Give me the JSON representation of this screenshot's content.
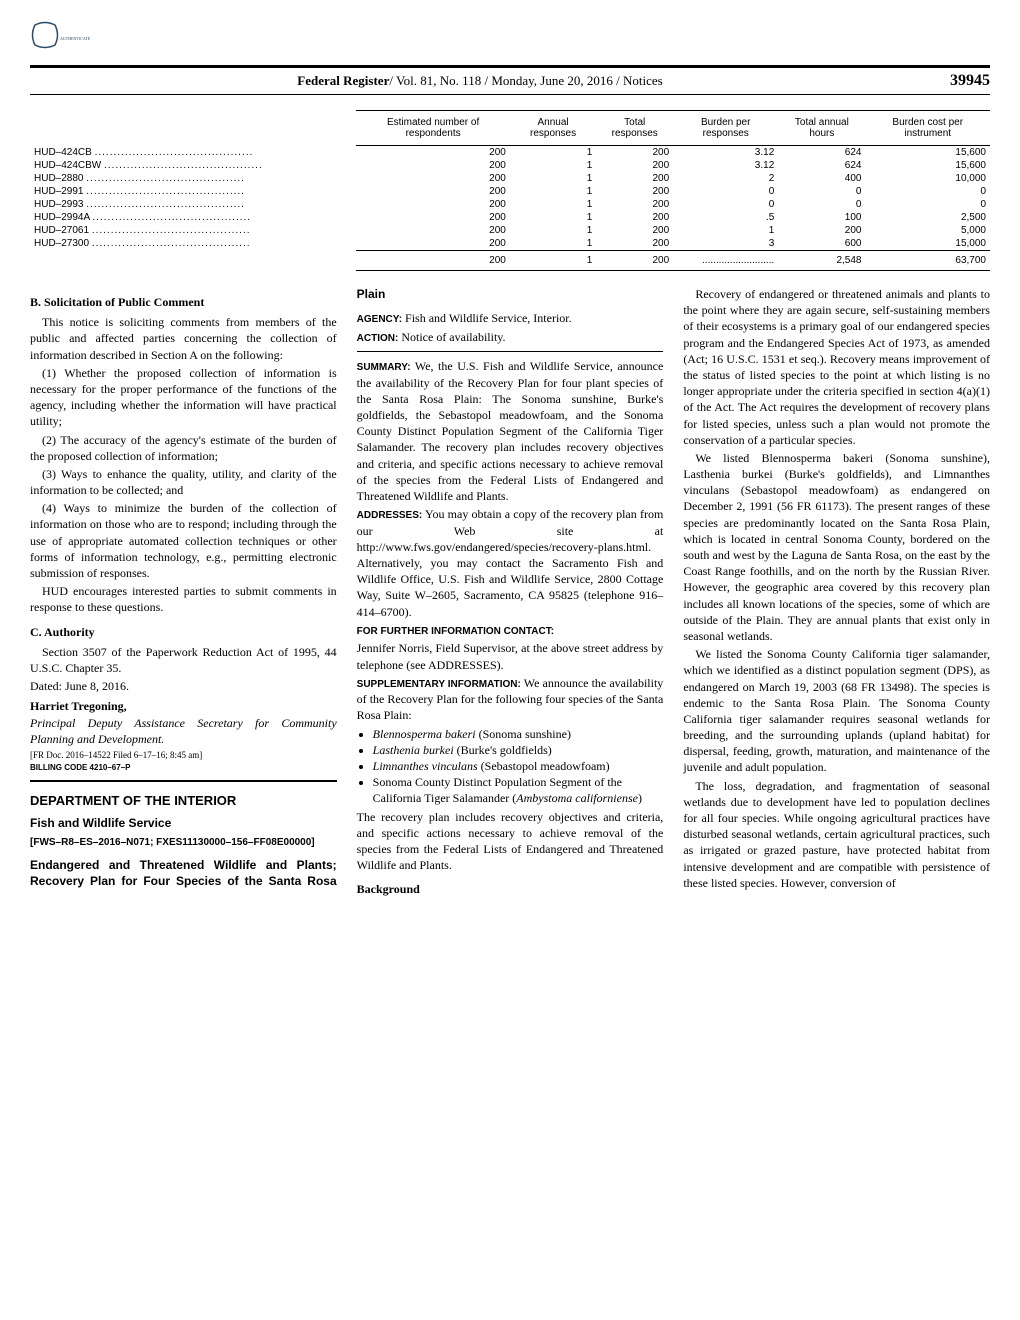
{
  "header": {
    "publication": "Federal Register",
    "volume_issue": "/ Vol. 81, No. 118 / Monday, June 20, 2016 / Notices",
    "page_number": "39945"
  },
  "table": {
    "columns": [
      "",
      "Estimated number of respondents",
      "Annual responses",
      "Total responses",
      "Burden per responses",
      "Total annual hours",
      "Burden cost per instrument"
    ],
    "rows": [
      [
        "HUD–424CB",
        "200",
        "1",
        "200",
        "3.12",
        "624",
        "15,600"
      ],
      [
        "HUD–424CBW",
        "200",
        "1",
        "200",
        "3.12",
        "624",
        "15,600"
      ],
      [
        "HUD–2880",
        "200",
        "1",
        "200",
        "2",
        "400",
        "10,000"
      ],
      [
        "HUD–2991",
        "200",
        "1",
        "200",
        "0",
        "0",
        "0"
      ],
      [
        "HUD–2993",
        "200",
        "1",
        "200",
        "0",
        "0",
        "0"
      ],
      [
        "HUD–2994A",
        "200",
        "1",
        "200",
        ".5",
        "100",
        "2,500"
      ],
      [
        "HUD–27061",
        "200",
        "1",
        "200",
        "1",
        "200",
        "5,000"
      ],
      [
        "HUD–27300",
        "200",
        "1",
        "200",
        "3",
        "600",
        "15,000"
      ]
    ],
    "total": [
      "",
      "200",
      "1",
      "200",
      "..........................",
      "2,548",
      "63,700"
    ]
  },
  "sectionB": {
    "heading": "B. Solicitation of Public Comment",
    "p1": "This notice is soliciting comments from members of the public and affected parties concerning the collection of information described in Section A on the following:",
    "p2": "(1) Whether the proposed collection of information is necessary for the proper performance of the functions of the agency, including whether the information will have practical utility;",
    "p3": "(2) The accuracy of the agency's estimate of the burden of the proposed collection of information;",
    "p4": "(3) Ways to enhance the quality, utility, and clarity of the information to be collected; and",
    "p5": "(4) Ways to minimize the burden of the collection of information on those who are to respond; including through the use of appropriate automated collection techniques or other forms of information technology, e.g., permitting electronic submission of responses.",
    "p6": "HUD encourages interested parties to submit comments in response to these questions."
  },
  "sectionC": {
    "heading": "C. Authority",
    "p1": "Section 3507 of the Paperwork Reduction Act of 1995, 44 U.S.C. Chapter 35.",
    "dated": "Dated: June 8, 2016.",
    "name": "Harriet Tregoning,",
    "title": "Principal Deputy Assistance Secretary for Community Planning and Development.",
    "filing": "[FR Doc. 2016–14522 Filed 6–17–16; 8:45 am]",
    "billing": "BILLING CODE 4210–67–P"
  },
  "dept": {
    "name": "DEPARTMENT OF THE INTERIOR",
    "service": "Fish and Wildlife Service",
    "docket": "[FWS–R8–ES–2016–N071; FXES11130000–156–FF08E00000]",
    "title": "Endangered and Threatened Wildlife and Plants; Recovery Plan for Four Species of the Santa Rosa Plain",
    "agency_label": "AGENCY:",
    "agency": " Fish and Wildlife Service, Interior.",
    "action_label": "ACTION:",
    "action": " Notice of availability."
  },
  "summary": {
    "label": "SUMMARY:",
    "text": " We, the U.S. Fish and Wildlife Service, announce the availability of the Recovery Plan for four plant species of the Santa Rosa Plain: The Sonoma sunshine, Burke's goldfields, the Sebastopol meadowfoam, and the Sonoma County Distinct Population Segment of the California Tiger Salamander. The recovery plan includes recovery objectives and criteria, and specific actions necessary to achieve removal of the species from the Federal Lists of Endangered and Threatened Wildlife and Plants."
  },
  "addresses": {
    "label": "ADDRESSES:",
    "text": " You may obtain a copy of the recovery plan from our Web site at http://www.fws.gov/endangered/species/recovery-plans.html. Alternatively, you may contact the Sacramento Fish and Wildlife Office, U.S. Fish and Wildlife Service, 2800 Cottage Way, Suite W–2605, Sacramento, CA 95825 (telephone 916–414–6700)."
  },
  "contact": {
    "label": "FOR FURTHER INFORMATION CONTACT:",
    "text": "Jennifer Norris, Field Supervisor, at the above street address by telephone (see ADDRESSES)."
  },
  "supplementary": {
    "label": "SUPPLEMENTARY INFORMATION:",
    "intro": " We announce the availability of the Recovery Plan for the following four species of the Santa Rosa Plain:",
    "bullets": [
      "Blennosperma bakeri (Sonoma sunshine)",
      "Lasthenia burkei (Burke's goldfields)",
      "Limnanthes vinculans (Sebastopol meadowfoam)",
      "Sonoma County Distinct Population Segment of the California Tiger Salamander (Ambystoma californiense)"
    ],
    "after": "The recovery plan includes recovery objectives and criteria, and specific actions necessary to achieve removal of the species from the Federal Lists of Endangered and Threatened Wildlife and Plants."
  },
  "background": {
    "heading": "Background",
    "p1": "Recovery of endangered or threatened animals and plants to the point where they are again secure, self-sustaining members of their ecosystems is a primary goal of our endangered species program and the Endangered Species Act of 1973, as amended (Act; 16 U.S.C. 1531 et seq.). Recovery means improvement of the status of listed species to the point at which listing is no longer appropriate under the criteria specified in section 4(a)(1) of the Act. The Act requires the development of recovery plans for listed species, unless such a plan would not promote the conservation of a particular species.",
    "p2": "We listed Blennosperma bakeri (Sonoma sunshine), Lasthenia burkei (Burke's goldfields), and Limnanthes vinculans (Sebastopol meadowfoam) as endangered on December 2, 1991 (56 FR 61173). The present ranges of these species are predominantly located on the Santa Rosa Plain, which is located in central Sonoma County, bordered on the south and west by the Laguna de Santa Rosa, on the east by the Coast Range foothills, and on the north by the Russian River. However, the geographic area covered by this recovery plan includes all known locations of the species, some of which are outside of the Plain. They are annual plants that exist only in seasonal wetlands.",
    "p3": "We listed the Sonoma County California tiger salamander, which we identified as a distinct population segment (DPS), as endangered on March 19, 2003 (68 FR 13498). The species is endemic to the Santa Rosa Plain. The Sonoma County California tiger salamander requires seasonal wetlands for breeding, and the surrounding uplands (upland habitat) for dispersal, feeding, growth, maturation, and maintenance of the juvenile and adult population.",
    "p4": "The loss, degradation, and fragmentation of seasonal wetlands due to development have led to population declines for all four species. While ongoing agricultural practices have disturbed seasonal wetlands, certain agricultural practices, such as irrigated or grazed pasture, have protected habitat from intensive development and are compatible with persistence of these listed species. However, conversion of"
  }
}
